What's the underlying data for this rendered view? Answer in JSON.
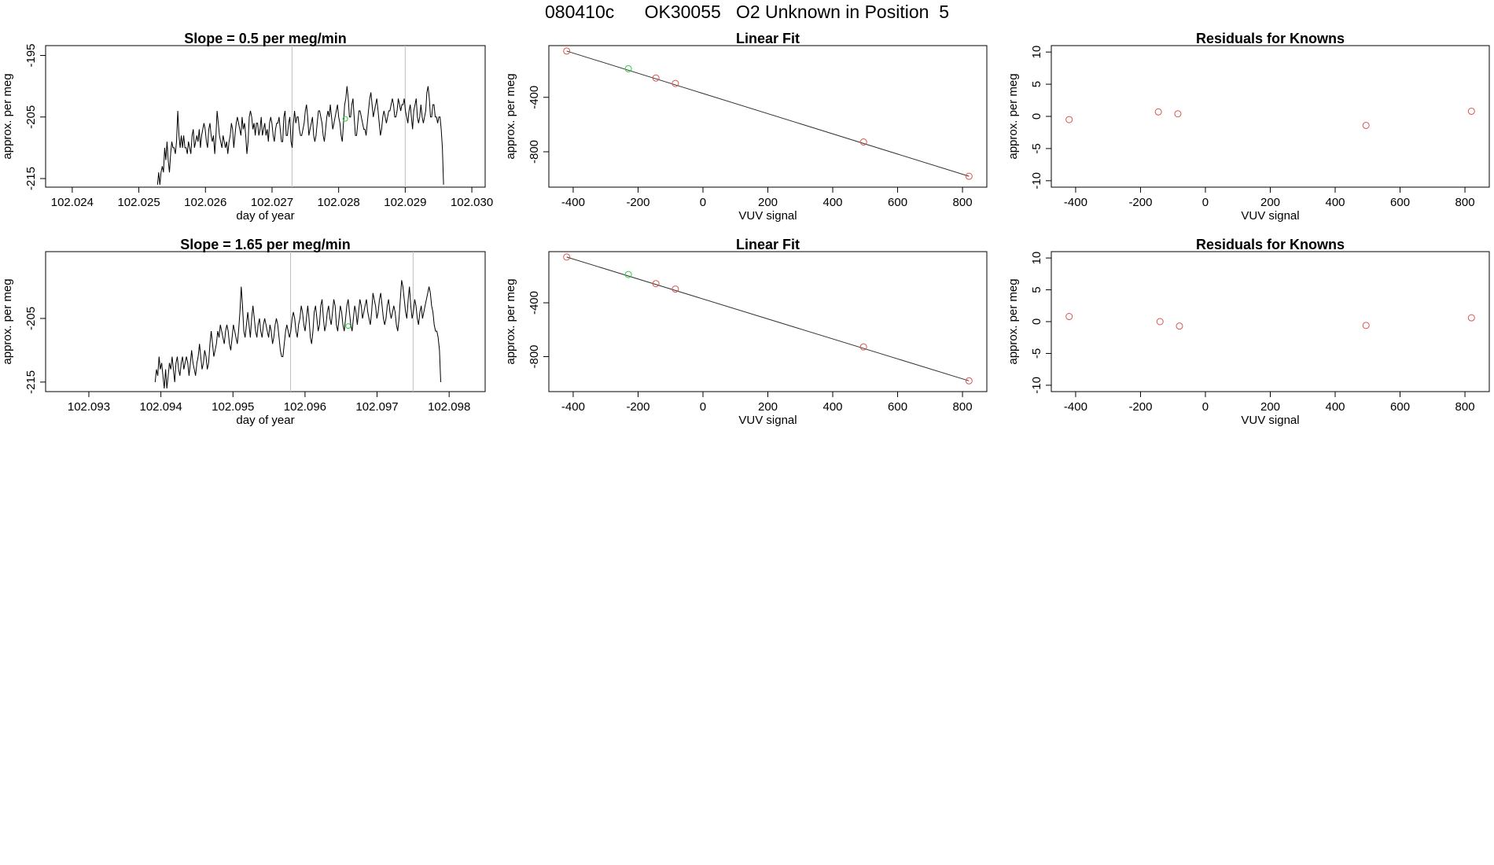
{
  "header": {
    "title": "080410c      OK30055   O2 Unknown in Position  5"
  },
  "chart_data": [
    {
      "type": "line",
      "title": "Slope =  0.5  per meg/min",
      "xlabel": "day of year",
      "ylabel": "approx. per meg",
      "xlim": [
        102.0236,
        102.0302
      ],
      "ylim": [
        -216.4,
        -193.4
      ],
      "xticks": [
        "102.024",
        "102.025",
        "102.026",
        "102.027",
        "102.028",
        "102.029",
        "102.030"
      ],
      "yticks": [
        "-195",
        "-205",
        "-215"
      ],
      "vlines": [
        102.0273,
        102.029
      ],
      "x_start": 102.02528,
      "x_step": 1.79e-05,
      "values": [
        -216,
        -214,
        -216,
        -214,
        -213,
        -214,
        -210,
        -212,
        -209,
        -212,
        -214,
        -211,
        -209,
        -210,
        -210,
        -211,
        -209,
        -204,
        -208,
        -210,
        -208,
        -210,
        -208,
        -210,
        -210,
        -211,
        -209,
        -210,
        -211,
        -208,
        -207,
        -210,
        -209,
        -208,
        -209,
        -207,
        -210,
        -208,
        -207,
        -206,
        -207,
        -209,
        -210,
        -207,
        -206,
        -208,
        -209,
        -208,
        -211,
        -208,
        -204,
        -206,
        -208,
        -209,
        -210,
        -208,
        -209,
        -210,
        -209,
        -211,
        -209,
        -208,
        -206,
        -207,
        -210,
        -208,
        -206,
        -205,
        -206,
        -207,
        -208,
        -205,
        -207,
        -206,
        -208,
        -211,
        -209,
        -205,
        -204,
        -205,
        -207,
        -206,
        -208,
        -206,
        -206,
        -208,
        -207,
        -205,
        -208,
        -207,
        -206,
        -208,
        -207,
        -209,
        -206,
        -205,
        -206,
        -208,
        -209,
        -207,
        -206,
        -206,
        -205,
        -207,
        -209,
        -209,
        -205,
        -204,
        -208,
        -208,
        -206,
        -205,
        -209,
        -210,
        -206,
        -204,
        -206,
        -205,
        -205,
        -207,
        -208,
        -208,
        -207,
        -206,
        -204,
        -203,
        -205,
        -208,
        -207,
        -206,
        -205,
        -208,
        -209,
        -208,
        -206,
        -204,
        -204,
        -205,
        -206,
        -208,
        -209,
        -207,
        -205,
        -204,
        -205,
        -203,
        -205,
        -207,
        -206,
        -205,
        -204,
        -203,
        -205,
        -206,
        -208,
        -209,
        -206,
        -203,
        -202,
        -200,
        -202,
        -205,
        -205,
        -203,
        -202,
        -205,
        -208,
        -208,
        -206,
        -204,
        -204,
        -205,
        -206,
        -207,
        -207,
        -208,
        -206,
        -204,
        -202,
        -201,
        -203,
        -205,
        -204,
        -203,
        -202,
        -204,
        -206,
        -208,
        -207,
        -205,
        -204,
        -205,
        -206,
        -205,
        -204,
        -204,
        -203,
        -202,
        -203,
        -205,
        -205,
        -204,
        -202,
        -203,
        -204,
        -203,
        -203,
        -202,
        -204,
        -205,
        -206,
        -204,
        -203,
        -205,
        -207,
        -204,
        -203,
        -202,
        -205,
        -206,
        -205,
        -203,
        -205,
        -206,
        -205,
        -204,
        -201,
        -200,
        -202,
        -205,
        -205,
        -203,
        -203,
        -205,
        -205,
        -206,
        -205,
        -205,
        -207,
        -210,
        -216
      ],
      "marker_green": [
        102.0281,
        -205.3
      ]
    },
    {
      "type": "scatter",
      "title": "Linear Fit",
      "xlabel": "VUV signal",
      "ylabel": "approx. per meg",
      "xlim": [
        -475,
        875
      ],
      "ylim": [
        -1060,
        -20
      ],
      "xticks": [
        "-400",
        "-200",
        "0",
        "200",
        "400",
        "600",
        "800"
      ],
      "yticks": [
        "-400",
        "-800"
      ],
      "fit_line": [
        [
          -420,
          -60
        ],
        [
          820,
          -980
        ]
      ],
      "points_red": [
        [
          -420,
          -60
        ],
        [
          -145,
          -258
        ],
        [
          -85,
          -298
        ],
        [
          495,
          -728
        ],
        [
          820,
          -980
        ]
      ],
      "points_green": [
        [
          -230,
          -190
        ]
      ]
    },
    {
      "type": "scatter",
      "title": "Residuals for Knowns",
      "xlabel": "VUV signal",
      "ylabel": "approx. per meg",
      "xlim": [
        -475,
        875
      ],
      "ylim": [
        -11,
        11
      ],
      "xticks": [
        "-400",
        "-200",
        "0",
        "200",
        "400",
        "600",
        "800"
      ],
      "yticks": [
        "-10",
        "-5",
        "0",
        "5",
        "10"
      ],
      "points_red": [
        [
          -420,
          -0.5
        ],
        [
          -145,
          0.7
        ],
        [
          -85,
          0.4
        ],
        [
          495,
          -1.4
        ],
        [
          820,
          0.8
        ]
      ]
    },
    {
      "type": "line",
      "title": "Slope =  1.65  per meg/min",
      "xlabel": "day of year",
      "ylabel": "approx. per meg",
      "xlim": [
        102.0924,
        102.0985
      ],
      "ylim": [
        -216.5,
        -194.5
      ],
      "xticks": [
        "102.093",
        "102.094",
        "102.095",
        "102.096",
        "102.097",
        "102.098"
      ],
      "yticks": [
        "-205",
        "-215"
      ],
      "vlines": [
        102.0958,
        102.0975
      ],
      "x_start": 102.09392,
      "x_step": 1.81e-05,
      "values": [
        -215,
        -213,
        -214,
        -211,
        -213,
        -212,
        -214,
        -216,
        -213,
        -216,
        -214,
        -212,
        -213,
        -211,
        -213,
        -215,
        -212,
        -211,
        -213,
        -214,
        -212,
        -211,
        -213,
        -212,
        -211,
        -212,
        -214,
        -212,
        -210,
        -212,
        -213,
        -214,
        -212,
        -211,
        -209,
        -211,
        -213,
        -212,
        -210,
        -211,
        -213,
        -212,
        -209,
        -207,
        -209,
        -211,
        -210,
        -209,
        -207,
        -208,
        -206,
        -207,
        -208,
        -209,
        -207,
        -206,
        -207,
        -209,
        -210,
        -208,
        -206,
        -207,
        -208,
        -209,
        -207,
        -204,
        -200,
        -203,
        -207,
        -208,
        -206,
        -204,
        -206,
        -208,
        -205,
        -203,
        -205,
        -207,
        -208,
        -206,
        -205,
        -207,
        -208,
        -206,
        -205,
        -206,
        -207,
        -208,
        -206,
        -207,
        -209,
        -208,
        -206,
        -205,
        -206,
        -208,
        -210,
        -211,
        -211,
        -209,
        -207,
        -206,
        -207,
        -208,
        -207,
        -205,
        -204,
        -205,
        -207,
        -208,
        -206,
        -205,
        -203,
        -204,
        -206,
        -207,
        -205,
        -203,
        -205,
        -208,
        -209,
        -207,
        -204,
        -203,
        -205,
        -207,
        -206,
        -203,
        -202,
        -205,
        -207,
        -206,
        -204,
        -203,
        -205,
        -206,
        -204,
        -202,
        -203,
        -206,
        -207,
        -205,
        -203,
        -204,
        -206,
        -207,
        -205,
        -203,
        -202,
        -204,
        -206,
        -207,
        -205,
        -203,
        -204,
        -206,
        -204,
        -202,
        -203,
        -205,
        -204,
        -203,
        -202,
        -204,
        -205,
        -206,
        -204,
        -201,
        -202,
        -203,
        -205,
        -204,
        -202,
        -201,
        -203,
        -205,
        -206,
        -205,
        -203,
        -202,
        -204,
        -205,
        -204,
        -203,
        -204,
        -206,
        -207,
        -205,
        -202,
        -199,
        -200,
        -202,
        -204,
        -205,
        -202,
        -200,
        -203,
        -205,
        -204,
        -202,
        -203,
        -205,
        -206,
        -204,
        -203,
        -205,
        -204,
        -203,
        -202,
        -201,
        -200,
        -201,
        -203,
        -204,
        -206,
        -207,
        -207,
        -208,
        -210,
        -215
      ],
      "marker_green": [
        102.0966,
        -206.2
      ]
    },
    {
      "type": "scatter",
      "title": "Linear Fit",
      "xlabel": "VUV signal",
      "ylabel": "approx. per meg",
      "xlim": [
        -475,
        875
      ],
      "ylim": [
        -1060,
        -20
      ],
      "xticks": [
        "-400",
        "-200",
        "0",
        "200",
        "400",
        "600",
        "800"
      ],
      "yticks": [
        "-400",
        "-800"
      ],
      "fit_line": [
        [
          -420,
          -60
        ],
        [
          820,
          -980
        ]
      ],
      "points_red": [
        [
          -420,
          -60
        ],
        [
          -145,
          -258
        ],
        [
          -85,
          -298
        ],
        [
          495,
          -728
        ],
        [
          820,
          -980
        ]
      ],
      "points_green": [
        [
          -230,
          -190
        ]
      ]
    },
    {
      "type": "scatter",
      "title": "Residuals for Knowns",
      "xlabel": "VUV signal",
      "ylabel": "approx. per meg",
      "xlim": [
        -475,
        875
      ],
      "ylim": [
        -11,
        11
      ],
      "xticks": [
        "-400",
        "-200",
        "0",
        "200",
        "400",
        "600",
        "800"
      ],
      "yticks": [
        "-10",
        "-5",
        "0",
        "5",
        "10"
      ],
      "points_red": [
        [
          -420,
          0.8
        ],
        [
          -140,
          0.0
        ],
        [
          -80,
          -0.7
        ],
        [
          495,
          -0.6
        ],
        [
          820,
          0.6
        ]
      ]
    }
  ],
  "colors": {
    "axis": "#000000",
    "line": "#000000",
    "fit_line": "#333333",
    "vline": "#bebebe",
    "point_red": "#d9544f",
    "point_green": "#2ecc40"
  }
}
